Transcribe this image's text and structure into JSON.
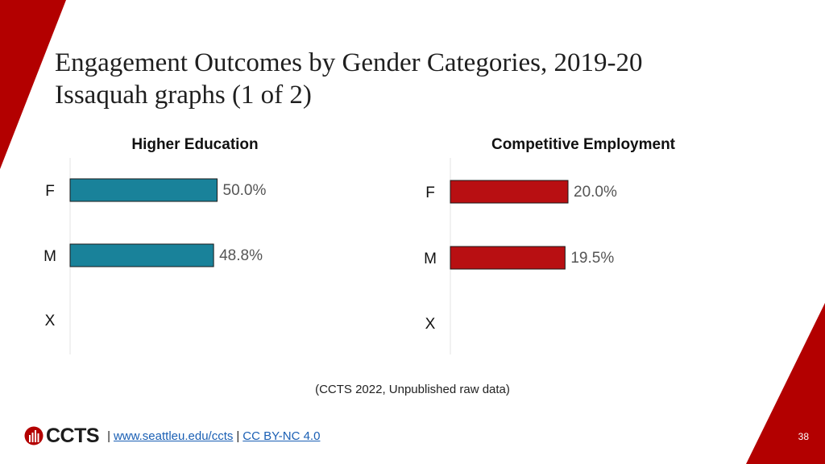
{
  "title_line1": "Engagement Outcomes by Gender Categories, 2019-20",
  "title_line2": "Issaquah graphs (1 of 2)",
  "colors": {
    "accent_red": "#b30000",
    "teal": "#19829a",
    "dark_red": "#b80f12"
  },
  "chart_data": [
    {
      "type": "bar",
      "orientation": "horizontal",
      "title": "Higher Education",
      "categories": [
        "F",
        "M",
        "X"
      ],
      "values": [
        50.0,
        48.8,
        null
      ],
      "labels": [
        "50.0%",
        "48.8%",
        ""
      ],
      "color": "#19829a",
      "xlim": [
        0,
        100
      ]
    },
    {
      "type": "bar",
      "orientation": "horizontal",
      "title": "Competitive Employment",
      "categories": [
        "F",
        "M",
        "X"
      ],
      "values": [
        20.0,
        19.5,
        null
      ],
      "labels": [
        "20.0%",
        "19.5%",
        ""
      ],
      "color": "#b80f12",
      "xlim": [
        0,
        50
      ]
    }
  ],
  "source": "(CCTS 2022, Unpublished raw data)",
  "footer": {
    "logo_text": "CCTS",
    "separator": "|",
    "link_site": "www.seattleu.edu/ccts",
    "link_license": "CC BY-NC 4.0"
  },
  "page_number": "38"
}
